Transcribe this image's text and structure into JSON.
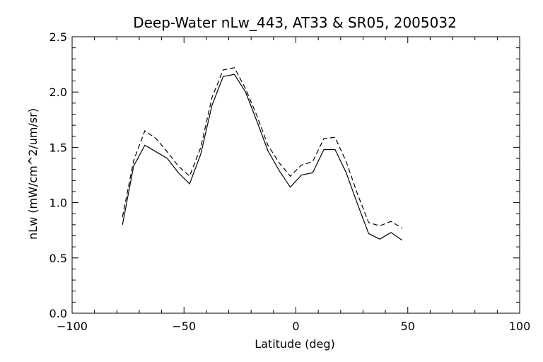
{
  "chart_data": {
    "type": "line",
    "title": "Deep-Water nLw_443, AT33 & SR05, 2005032",
    "xlabel": "Latitude (deg)",
    "ylabel": "nLw (mW/cm^2/um/sr)",
    "xlim": [
      -100,
      100
    ],
    "ylim": [
      0.0,
      2.5
    ],
    "x_ticks": [
      -100,
      -50,
      0,
      50,
      100
    ],
    "x_tick_labels": [
      "−100",
      "−50",
      "0",
      "50",
      "100"
    ],
    "y_ticks": [
      0.0,
      0.5,
      1.0,
      1.5,
      2.0,
      2.5
    ],
    "y_tick_labels": [
      "0.0",
      "0.5",
      "1.0",
      "1.5",
      "2.0",
      "2.5"
    ],
    "grid": false,
    "series": [
      {
        "style": "solid",
        "x": [
          -77.5,
          -72.5,
          -67.5,
          -62.5,
          -57.5,
          -52.5,
          -47.5,
          -42.5,
          -37.5,
          -32.5,
          -27.5,
          -22.5,
          -17.5,
          -12.5,
          -7.5,
          -2.5,
          2.5,
          7.5,
          12.5,
          17.5,
          22.5,
          27.5,
          32.5,
          37.5,
          42.5,
          47.5
        ],
        "y": [
          0.8,
          1.33,
          1.52,
          1.46,
          1.4,
          1.27,
          1.17,
          1.44,
          1.88,
          2.14,
          2.16,
          2.0,
          1.74,
          1.47,
          1.29,
          1.14,
          1.25,
          1.27,
          1.48,
          1.48,
          1.27,
          0.99,
          0.72,
          0.67,
          0.73,
          0.66
        ]
      },
      {
        "style": "dashed",
        "x": [
          -77.5,
          -72.5,
          -67.5,
          -62.5,
          -57.5,
          -52.5,
          -47.5,
          -42.5,
          -37.5,
          -32.5,
          -27.5,
          -22.5,
          -17.5,
          -12.5,
          -7.5,
          -2.5,
          2.5,
          7.5,
          12.5,
          17.5,
          22.5,
          27.5,
          32.5,
          37.5,
          42.5,
          47.5
        ],
        "y": [
          0.87,
          1.38,
          1.65,
          1.58,
          1.46,
          1.33,
          1.24,
          1.5,
          1.95,
          2.2,
          2.22,
          2.03,
          1.79,
          1.52,
          1.36,
          1.24,
          1.34,
          1.37,
          1.58,
          1.59,
          1.37,
          1.08,
          0.82,
          0.79,
          0.83,
          0.77
        ]
      }
    ]
  }
}
